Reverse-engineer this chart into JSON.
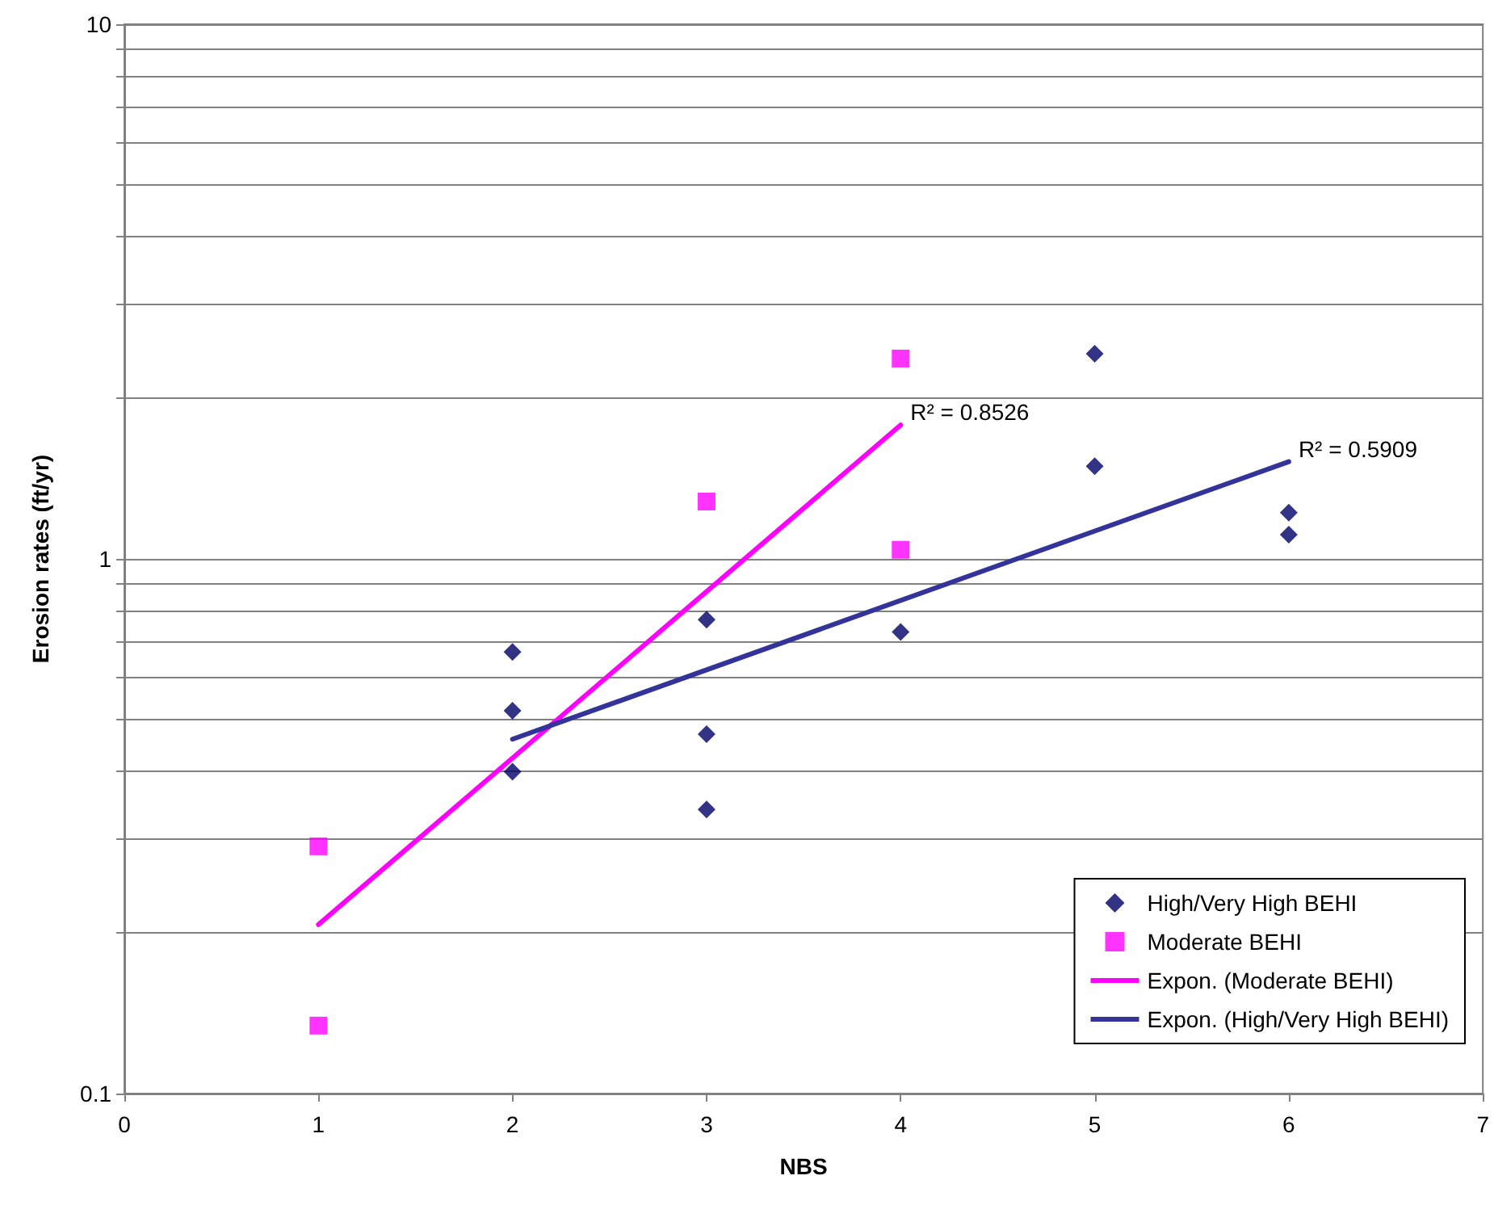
{
  "chart_data": {
    "type": "scatter",
    "xlabel": "NBS",
    "ylabel": "Erosion rates (ft/yr)",
    "log": "y",
    "grid": "y",
    "legend": "bottom right",
    "xlim": [
      0,
      7
    ],
    "xticks": [
      0,
      1,
      2,
      3,
      4,
      5,
      6,
      7
    ],
    "ylim": [
      0.1,
      10
    ],
    "yticks": [
      0.1,
      {
        "value": 0.2,
        "label": null
      },
      {
        "value": 0.3,
        "label": null
      },
      {
        "value": 0.4,
        "label": null
      },
      {
        "value": 0.5,
        "label": null
      },
      {
        "value": 0.6,
        "label": null
      },
      {
        "value": 0.7,
        "label": null
      },
      {
        "value": 0.8,
        "label": null
      },
      {
        "value": 0.9,
        "label": null
      },
      1,
      {
        "value": 2,
        "label": null
      },
      {
        "value": 3,
        "label": null
      },
      {
        "value": 4,
        "label": null
      },
      {
        "value": 5,
        "label": null
      },
      {
        "value": 6,
        "label": null
      },
      {
        "value": 7,
        "label": null
      },
      {
        "value": 8,
        "label": null
      },
      {
        "value": 9,
        "label": null
      },
      10
    ],
    "series": [
      {
        "name": "High/Very High BEHI",
        "type": "scatter",
        "marker": "diamond",
        "color": "#000066",
        "x": [
          2,
          2,
          2,
          3,
          3,
          3,
          4,
          5,
          5,
          6,
          6
        ],
        "values": [
          0.67,
          0.52,
          0.4,
          0.77,
          0.47,
          0.34,
          0.73,
          2.42,
          1.49,
          1.22,
          1.11
        ]
      },
      {
        "name": "Moderate BEHI",
        "type": "scatter",
        "marker": "square",
        "color": "#ff00ff",
        "x": [
          1,
          1,
          3,
          4,
          4
        ],
        "values": [
          0.29,
          0.134,
          1.28,
          2.37,
          1.04
        ]
      },
      {
        "name": "Expon. (Moderate BEHI)",
        "type": "line",
        "marker": "none",
        "color": "#ff00ff",
        "x": [
          1,
          4
        ],
        "values": [
          0.207,
          1.78
        ]
      },
      {
        "name": "Expon. (High/Very High BEHI)",
        "type": "line",
        "marker": "none",
        "color": "#333399",
        "x": [
          2,
          6
        ],
        "values": [
          0.46,
          1.52
        ]
      }
    ],
    "annotations": [
      {
        "text": "R² = 0.8526",
        "x": 4,
        "y": 1.78
      },
      {
        "text": "R² = 0.5909",
        "x": 6,
        "y": 1.52
      }
    ]
  }
}
